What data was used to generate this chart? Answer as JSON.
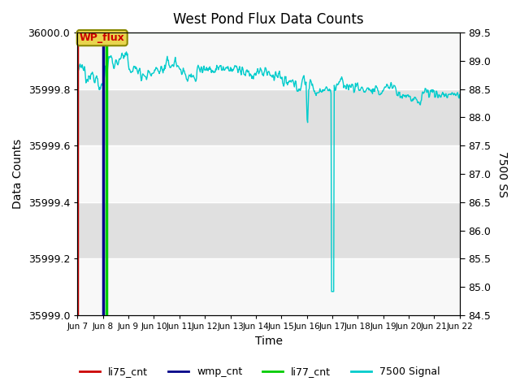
{
  "title": "West Pond Flux Data Counts",
  "ylabel_left": "Data Counts",
  "ylabel_right": "7500 SS",
  "xlabel": "Time",
  "ylim_left": [
    35999.0,
    36000.0
  ],
  "ylim_right": [
    84.5,
    89.5
  ],
  "yticks_left": [
    35999.0,
    35999.2,
    35999.4,
    35999.6,
    35999.8,
    36000.0
  ],
  "yticks_right": [
    84.5,
    85.0,
    85.5,
    86.0,
    86.5,
    87.0,
    87.5,
    88.0,
    88.5,
    89.0,
    89.5
  ],
  "fig_bg_color": "#ffffff",
  "plot_bg_color": "#f0f0f0",
  "band_color_light": "#f8f8f8",
  "band_color_dark": "#e0e0e0",
  "grid_color": "#ffffff",
  "title_color": "#000000",
  "annotation_box_facecolor": "#e8d44d",
  "annotation_box_edgecolor": "#888800",
  "annotation_text": "WP_flux",
  "annotation_text_color": "#cc0000",
  "li75_color": "#cc0000",
  "wmp_color": "#000088",
  "li77_color": "#00cc00",
  "signal_color": "#00cccc",
  "xtick_labels": [
    "Jun 7",
    "Jun 8",
    "Jun 9",
    "Jun 10",
    "Jun 11",
    "Jun 12",
    "Jun 13",
    "Jun 14",
    "Jun 15",
    "Jun 16",
    "Jun 17",
    "Jun 18",
    "Jun 19",
    "Jun 20",
    "Jun 21",
    "Jun 22"
  ],
  "legend_labels": [
    "li75_cnt",
    "wmp_cnt",
    "li77_cnt",
    "7500 Signal"
  ],
  "legend_colors": [
    "#cc0000",
    "#000088",
    "#00cc00",
    "#00cccc"
  ],
  "n_days": 15,
  "pts_per_day": 48
}
